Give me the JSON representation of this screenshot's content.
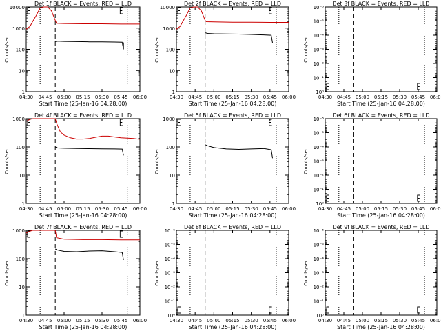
{
  "colors": {
    "events": "#000000",
    "lld": "#cc0000",
    "axis": "#000000",
    "background": "#ffffff"
  },
  "x_axis": {
    "range": [
      "04:30",
      "06:00"
    ],
    "ticks": [
      "04:30",
      "04:45",
      "05:00",
      "05:15",
      "05:30",
      "05:45",
      "06:00"
    ],
    "dotted_lines": [
      "04:41",
      "05:50"
    ],
    "dashed_line": "04:53"
  },
  "chart_data": [
    {
      "type": "line",
      "title": "Det 1f BLACK = Events, RED = LLD",
      "xlabel": "Start Time (25-Jan-16 04:28:00)",
      "ylabel": "Counts/sec",
      "yscale": "log",
      "ylim": [
        1,
        10000
      ],
      "ytick_labels": [
        "1",
        "10",
        "100",
        "1000",
        "10000"
      ],
      "series": [
        {
          "name": "Events",
          "color": "#000000",
          "x": [
            "04:53",
            "04:55",
            "05:00",
            "05:10",
            "05:20",
            "05:30",
            "05:40",
            "05:46",
            "05:47",
            "05:47"
          ],
          "y": [
            230,
            240,
            235,
            230,
            225,
            225,
            220,
            215,
            100,
            210
          ]
        },
        {
          "name": "LLD",
          "color": "#cc0000",
          "x": [
            "04:30",
            "04:31",
            "04:33",
            "04:35",
            "04:38",
            "04:41",
            "04:44",
            "04:47",
            "04:50",
            "04:53",
            "04:54",
            "05:00",
            "05:15",
            "05:30",
            "05:45",
            "06:00"
          ],
          "y": [
            900,
            1000,
            1200,
            2000,
            4000,
            9000,
            10000,
            10000,
            6500,
            2300,
            1700,
            1650,
            1600,
            1600,
            1550,
            1550
          ]
        }
      ]
    },
    {
      "type": "line",
      "title": "Det 2f BLACK = Events, RED = LLD",
      "xlabel": "Start Time (25-Jan-16 04:28:00)",
      "ylabel": "Counts/sec",
      "yscale": "log",
      "ylim": [
        1,
        10000
      ],
      "ytick_labels": [
        "1",
        "10",
        "100",
        "1000",
        "10000"
      ],
      "series": [
        {
          "name": "Events",
          "color": "#000000",
          "x": [
            "04:53",
            "04:55",
            "05:00",
            "05:10",
            "05:20",
            "05:30",
            "05:40",
            "05:46",
            "05:47"
          ],
          "y": [
            600,
            560,
            540,
            530,
            520,
            500,
            480,
            460,
            200
          ]
        },
        {
          "name": "LLD",
          "color": "#cc0000",
          "x": [
            "04:30",
            "04:31",
            "04:33",
            "04:35",
            "04:38",
            "04:41",
            "04:44",
            "04:47",
            "04:50",
            "04:53",
            "04:54",
            "05:00",
            "05:15",
            "05:30",
            "05:45",
            "06:00"
          ],
          "y": [
            900,
            1000,
            1200,
            2000,
            4000,
            9000,
            10000,
            10000,
            6500,
            2300,
            2000,
            1950,
            1900,
            1900,
            1850,
            1850
          ]
        }
      ]
    },
    {
      "type": "line",
      "title": "Det 3f BLACK = Events, RED = LLD",
      "xlabel": "Start Time (25-Jan-16 04:28:00)",
      "ylabel": "Counts/sec",
      "yscale": "log",
      "ylim": [
        1,
        1e-06
      ],
      "ytick_labels": [
        "10⁰",
        "10⁻¹",
        "10⁻²",
        "10⁻³",
        "10⁻⁴",
        "10⁻⁵",
        "10⁻⁶"
      ],
      "series": []
    },
    {
      "type": "line",
      "title": "Det 4f BLACK = Events, RED = LLD",
      "xlabel": "Start Time (25-Jan-16 04:28:00)",
      "ylabel": "Counts/sec",
      "yscale": "log",
      "ylim": [
        1,
        1000
      ],
      "ytick_labels": [
        "1",
        "10",
        "100",
        "1000"
      ],
      "series": [
        {
          "name": "Events",
          "color": "#000000",
          "x": [
            "04:53",
            "04:55",
            "05:00",
            "05:10",
            "05:20",
            "05:30",
            "05:40",
            "05:46",
            "05:47"
          ],
          "y": [
            100,
            92,
            90,
            88,
            87,
            86,
            85,
            84,
            50
          ]
        },
        {
          "name": "LLD",
          "color": "#cc0000",
          "x": [
            "04:30",
            "04:32",
            "04:35",
            "04:40",
            "04:45",
            "04:50",
            "04:53",
            "04:54",
            "04:57",
            "05:00",
            "05:05",
            "05:10",
            "05:15",
            "05:20",
            "05:25",
            "05:30",
            "05:35",
            "05:40",
            "05:45",
            "05:50",
            "05:55",
            "06:00"
          ],
          "y": [
            800,
            900,
            1000,
            1000,
            1000,
            1000,
            1000,
            700,
            340,
            260,
            210,
            190,
            190,
            200,
            220,
            240,
            240,
            225,
            210,
            205,
            200,
            185
          ]
        }
      ]
    },
    {
      "type": "line",
      "title": "Det 5f BLACK = Events, RED = LLD",
      "xlabel": "Start Time (25-Jan-16 04:28:00)",
      "ylabel": "Counts/sec",
      "yscale": "log",
      "ylim": [
        1,
        1000
      ],
      "ytick_labels": [
        "1",
        "10",
        "100",
        "1000"
      ],
      "series": [
        {
          "name": "Events",
          "color": "#000000",
          "x": [
            "04:53",
            "04:55",
            "05:00",
            "05:10",
            "05:20",
            "05:30",
            "05:40",
            "05:46",
            "05:47"
          ],
          "y": [
            120,
            110,
            95,
            85,
            82,
            85,
            88,
            80,
            40
          ]
        }
      ]
    },
    {
      "type": "line",
      "title": "Det 6f BLACK = Events, RED = LLD",
      "xlabel": "Start Time (25-Jan-16 04:28:00)",
      "ylabel": "Counts/sec",
      "yscale": "log",
      "ylim": [
        1,
        1e-06
      ],
      "ytick_labels": [
        "10⁰",
        "10⁻¹",
        "10⁻²",
        "10⁻³",
        "10⁻⁴",
        "10⁻⁵",
        "10⁻⁶"
      ],
      "series": []
    },
    {
      "type": "line",
      "title": "Det 7f BLACK = Events, RED = LLD",
      "xlabel": "Start Time (25-Jan-16 04:28:00)",
      "ylabel": "Counts/sec",
      "yscale": "log",
      "ylim": [
        1,
        1000
      ],
      "ytick_labels": [
        "1",
        "10",
        "100",
        "1000"
      ],
      "series": [
        {
          "name": "Events",
          "color": "#000000",
          "x": [
            "04:53",
            "04:55",
            "05:00",
            "05:10",
            "05:20",
            "05:30",
            "05:40",
            "05:46",
            "05:47"
          ],
          "y": [
            220,
            200,
            180,
            175,
            185,
            190,
            175,
            165,
            90
          ]
        },
        {
          "name": "LLD",
          "color": "#cc0000",
          "x": [
            "04:30",
            "04:32",
            "04:35",
            "04:40",
            "04:45",
            "04:50",
            "04:53",
            "04:54",
            "05:00",
            "05:15",
            "05:30",
            "05:45",
            "06:00"
          ],
          "y": [
            800,
            900,
            1000,
            1000,
            1000,
            1000,
            1000,
            550,
            490,
            470,
            470,
            460,
            460
          ]
        }
      ]
    },
    {
      "type": "line",
      "title": "Det 8f BLACK = Events, RED = LLD",
      "xlabel": "Start Time (25-Jan-16 04:28:00)",
      "ylabel": "Counts/sec",
      "yscale": "log",
      "ylim": [
        1,
        1e-06
      ],
      "ytick_labels": [
        "10⁰",
        "10⁻¹",
        "10⁻²",
        "10⁻³",
        "10⁻⁴",
        "10⁻⁵",
        "10⁻⁶"
      ],
      "series": []
    },
    {
      "type": "line",
      "title": "Det 9f BLACK = Events, RED = LLD",
      "xlabel": "Start Time (25-Jan-16 04:28:00)",
      "ylabel": "Counts/sec",
      "yscale": "log",
      "ylim": [
        1,
        1e-06
      ],
      "ytick_labels": [
        "10⁰",
        "10⁻¹",
        "10⁻²",
        "10⁻³",
        "10⁻⁴",
        "10⁻⁵",
        "10⁻⁶"
      ],
      "series": []
    }
  ]
}
